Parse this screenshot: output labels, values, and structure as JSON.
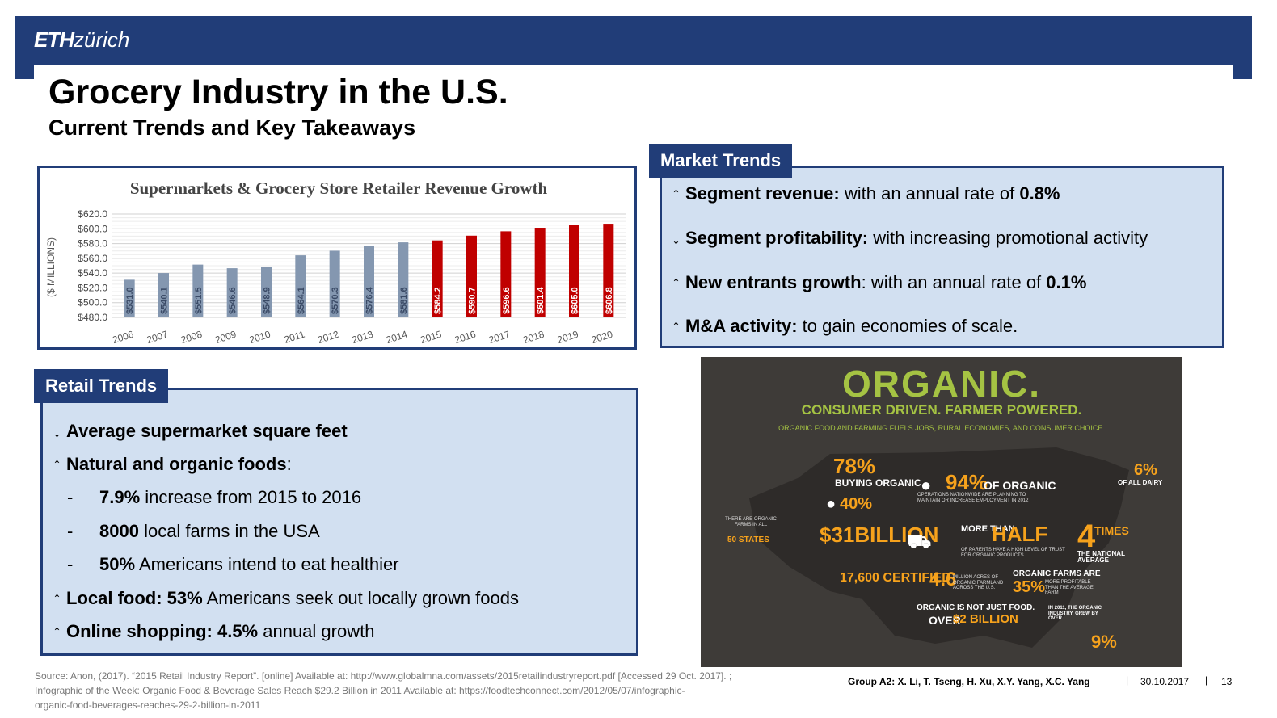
{
  "header": {
    "logo_bold": "ETH",
    "logo_rest": "zürich",
    "title": "Grocery Industry in the U.S.",
    "subtitle": "Current Trends and Key Takeaways"
  },
  "chart_data": {
    "type": "bar",
    "title": "Supermarkets & Grocery Store Retailer Revenue Growth",
    "ylabel": "($ MILLIONS)",
    "xlabel": "",
    "ylim": [
      480,
      620
    ],
    "yticks": [
      "$620.0",
      "$600.0",
      "$580.0",
      "$560.0",
      "$540.0",
      "$520.0",
      "$500.0",
      "$480.0"
    ],
    "grid": true,
    "categories": [
      "2006",
      "2007",
      "2008",
      "2009",
      "2010",
      "2011",
      "2012",
      "2013",
      "2014",
      "2015",
      "2016",
      "2017",
      "2018",
      "2019",
      "2020"
    ],
    "values": [
      531.0,
      540.1,
      551.5,
      546.6,
      548.9,
      564.1,
      570.3,
      576.4,
      581.6,
      584.2,
      590.7,
      596.6,
      601.4,
      605.0,
      606.8
    ],
    "labels": [
      "$531.0",
      "$540.1",
      "$551.5",
      "$546.6",
      "$548.9",
      "$564.1",
      "$570.3",
      "$576.4",
      "$581.6",
      "$584.2",
      "$590.7",
      "$596.6",
      "$601.4",
      "$605.0",
      "$606.8"
    ],
    "colors": {
      "historical": "#8497b0",
      "forecast": "#c00000"
    },
    "forecast_from_index": 9
  },
  "market_trends": {
    "tab": "Market Trends",
    "items": [
      {
        "arrow": "↑",
        "bold": "Segment revenue:",
        "text": " with an annual rate of ",
        "bold2": "0.8%"
      },
      {
        "arrow": "↓",
        "bold": "Segment profitability:",
        "text": " with increasing promotional activity",
        "bold2": ""
      },
      {
        "arrow": "↑",
        "bold": "New entrants growth",
        "text": ": with an annual rate of ",
        "bold2": "0.1%"
      },
      {
        "arrow": "↑",
        "bold": "M&A activity:",
        "text": " to gain economies of scale.",
        "bold2": ""
      }
    ]
  },
  "retail_trends": {
    "tab": "Retail Trends",
    "item1": {
      "arrow": "↓",
      "bold": "Average supermarket square feet"
    },
    "item2": {
      "arrow": "↑",
      "bold": "Natural and organic foods",
      "text": ":"
    },
    "subs": [
      {
        "dash": "-",
        "bold": "7.9%",
        "text": " increase from 2015 to 2016"
      },
      {
        "dash": "-",
        "bold": "8000",
        "text": " local farms in the USA"
      },
      {
        "dash": "-",
        "bold": "50%",
        "text": " Americans intend to eat healthier"
      }
    ],
    "item3": {
      "arrow": "↑",
      "bold": "Local food: 53%",
      "text": " Americans seek out locally grown foods"
    },
    "item4": {
      "arrow": "↑",
      "bold": "Online shopping: 4.5%",
      "text": " annual growth"
    }
  },
  "infographic": {
    "title": "ORGANIC.",
    "subtitle": "CONSUMER DRIVEN. FARMER POWERED.",
    "tagline": "ORGANIC FOOD AND FARMING FUELS JOBS, RURAL ECONOMIES, AND CONSUMER CHOICE.",
    "s78": "78%",
    "s78_text": "BUYING ORGANIC",
    "s40": "40%",
    "s94": "94%",
    "s94_text": "OF ORGANIC",
    "s94_sub": "OPERATIONS NATIONWIDE ARE PLANNING TO MAINTAIN OR INCREASE EMPLOYMENT IN 2012",
    "s6": "6%",
    "s6_text": "OF ALL DAIRY",
    "s50_text": "THERE ARE ORGANIC FARMS IN ALL",
    "s50": "50 STATES",
    "s31": "$31BILLION",
    "half_pre": "MORE THAN",
    "half": "HALF",
    "half_sub": "OF PARENTS HAVE A HIGH LEVEL OF TRUST FOR ORGANIC PRODUCTS",
    "times": "4",
    "times_text": "TIMES",
    "times_sub": "THE NATIONAL AVERAGE",
    "s17600": "17,600 CERTIFIED",
    "s46": "4.6",
    "s46_text": "MILLION ACRES OF ORGANIC FARMLAND ACROSS THE U.S.",
    "farms_text": "ORGANIC FARMS ARE",
    "s35": "35%",
    "s35_text": "MORE PROFITABLE THAN THE AVERAGE FARM",
    "food_text": "ORGANIC IS NOT JUST FOOD.",
    "over_pre": "OVER",
    "over": "$2 BILLION",
    "grew_text": "IN 2011, THE ORGANIC INDUSTRY, GREW BY OVER",
    "s9": "9%"
  },
  "footer": {
    "source_line1": "Source: Anon, (2017). “2015 Retail Industry Report”. [online] Available at: http://www.globalmna.com/assets/2015retailindustryreport.pdf [Accessed 29 Oct. 2017]. ;",
    "source_line2": "Infographic of the Week: Organic Food & Beverage Sales Reach $29.2 Billion in 2011 Available at: https://foodtechconnect.com/2012/05/07/infographic-",
    "source_line3": "organic-food-beverages-reaches-29-2-billion-in-2011",
    "group": "Group A2: X. Li, T. Tseng, H. Xu, X.Y. Yang, X.C. Yang",
    "date": "30.10.2017",
    "page": "13",
    "separator": "|"
  }
}
